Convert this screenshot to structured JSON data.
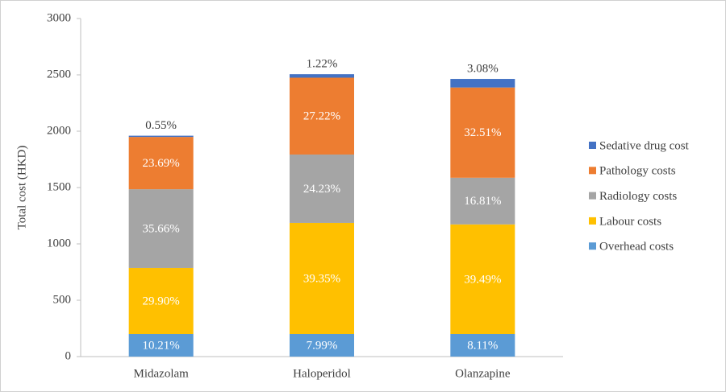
{
  "chart_data": {
    "type": "stacked_bar",
    "y_label": "Total cost (HKD)",
    "categories": [
      "Midazolam",
      "Haloperidol",
      "Olanzapine"
    ],
    "series": [
      {
        "name": "Overhead costs",
        "color": "#5b9bd5",
        "values": [
          200,
          200,
          200
        ],
        "share_labels": [
          "10.21%",
          "7.99%",
          "8.11%"
        ]
      },
      {
        "name": "Labour costs",
        "color": "#ffc000",
        "values": [
          586,
          986,
          973
        ],
        "share_labels": [
          "29.90%",
          "39.35%",
          "39.49%"
        ]
      },
      {
        "name": "Radiology costs",
        "color": "#a5a5a5",
        "values": [
          699,
          607,
          414
        ],
        "share_labels": [
          "35.66%",
          "24.23%",
          "16.81%"
        ]
      },
      {
        "name": "Pathology costs",
        "color": "#ed7d31",
        "values": [
          464,
          682,
          801
        ],
        "share_labels": [
          "23.69%",
          "27.22%",
          "32.51%"
        ]
      },
      {
        "name": "Sedative drug cost",
        "color": "#4472c4",
        "values": [
          11,
          31,
          76
        ],
        "share_labels": [
          "0.55%",
          "1.22%",
          "3.08%"
        ]
      }
    ],
    "ylim": [
      0,
      3000
    ],
    "yticks": [
      0,
      500,
      1000,
      1500,
      2000,
      2500,
      3000
    ],
    "grid": false,
    "legend": "right"
  }
}
